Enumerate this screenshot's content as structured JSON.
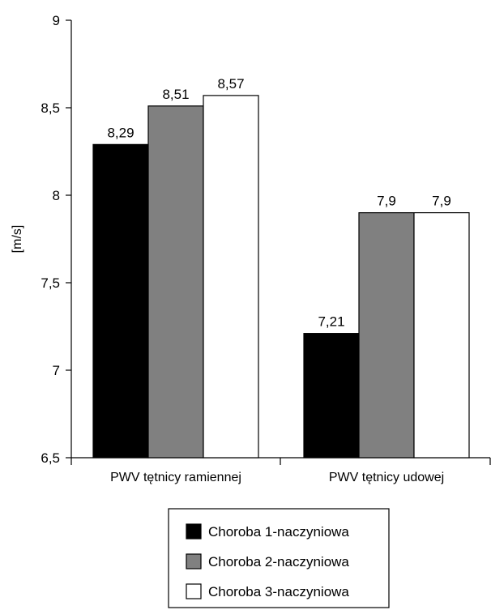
{
  "chart_data": {
    "type": "bar",
    "categories": [
      "PWV tętnicy ramiennej",
      "PWV tętnicy udowej"
    ],
    "series": [
      {
        "name": "Choroba 1-naczyniowa",
        "values": [
          8.29,
          7.21
        ],
        "labels": [
          "8,29",
          "7,21"
        ],
        "color": "#000000"
      },
      {
        "name": "Choroba 2-naczyniowa",
        "values": [
          8.51,
          7.9
        ],
        "labels": [
          "8,51",
          "7,9"
        ],
        "color": "#808080"
      },
      {
        "name": "Choroba 3-naczyniowa",
        "values": [
          8.57,
          7.9
        ],
        "labels": [
          "8,57",
          "7,9"
        ],
        "color": "#ffffff"
      }
    ],
    "ylabel": "[m/s]",
    "ylim": [
      6.5,
      9
    ],
    "yticks": [
      6.5,
      7,
      7.5,
      8,
      8.5,
      9
    ],
    "ytick_labels": [
      "6,5",
      "7",
      "7,5",
      "8",
      "8,5",
      "9"
    ],
    "grid": false,
    "legend_position": "bottom-center"
  }
}
